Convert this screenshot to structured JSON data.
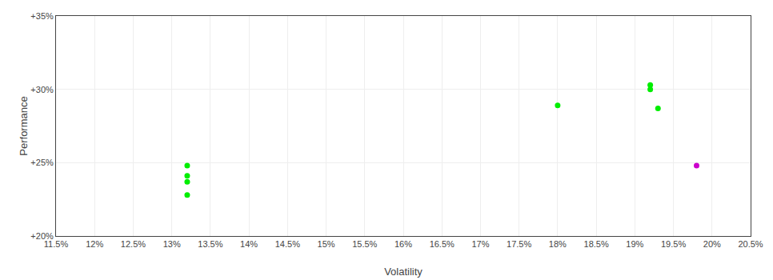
{
  "chart_data": {
    "type": "scatter",
    "xlabel": "Volatility",
    "ylabel": "Performance",
    "xlim": [
      0.115,
      0.205
    ],
    "ylim": [
      0.2,
      0.35
    ],
    "xticks": [
      {
        "value": 0.115,
        "label": "11.5%"
      },
      {
        "value": 0.12,
        "label": "12%"
      },
      {
        "value": 0.125,
        "label": "12.5%"
      },
      {
        "value": 0.13,
        "label": "13%"
      },
      {
        "value": 0.135,
        "label": "13.5%"
      },
      {
        "value": 0.14,
        "label": "14%"
      },
      {
        "value": 0.145,
        "label": "14.5%"
      },
      {
        "value": 0.15,
        "label": "15%"
      },
      {
        "value": 0.155,
        "label": "15.5%"
      },
      {
        "value": 0.16,
        "label": "16%"
      },
      {
        "value": 0.165,
        "label": "16.5%"
      },
      {
        "value": 0.17,
        "label": "17%"
      },
      {
        "value": 0.175,
        "label": "17.5%"
      },
      {
        "value": 0.18,
        "label": "18%"
      },
      {
        "value": 0.185,
        "label": "18.5%"
      },
      {
        "value": 0.19,
        "label": "19%"
      },
      {
        "value": 0.195,
        "label": "19.5%"
      },
      {
        "value": 0.2,
        "label": "20%"
      },
      {
        "value": 0.205,
        "label": "20.5%"
      }
    ],
    "yticks": [
      {
        "value": 0.2,
        "label": "+20%"
      },
      {
        "value": 0.25,
        "label": "+25%"
      },
      {
        "value": 0.3,
        "label": "+30%"
      },
      {
        "value": 0.35,
        "label": "+35%"
      }
    ],
    "grid": true,
    "series": [
      {
        "color": "#00ee00",
        "x": [
          0.132,
          0.132,
          0.132,
          0.132,
          0.18,
          0.192,
          0.192,
          0.193
        ],
        "values": [
          0.248,
          0.241,
          0.237,
          0.228,
          0.289,
          0.303,
          0.3,
          0.287
        ]
      },
      {
        "color": "#cc00cc",
        "x": [
          0.198
        ],
        "values": [
          0.248
        ]
      }
    ]
  }
}
